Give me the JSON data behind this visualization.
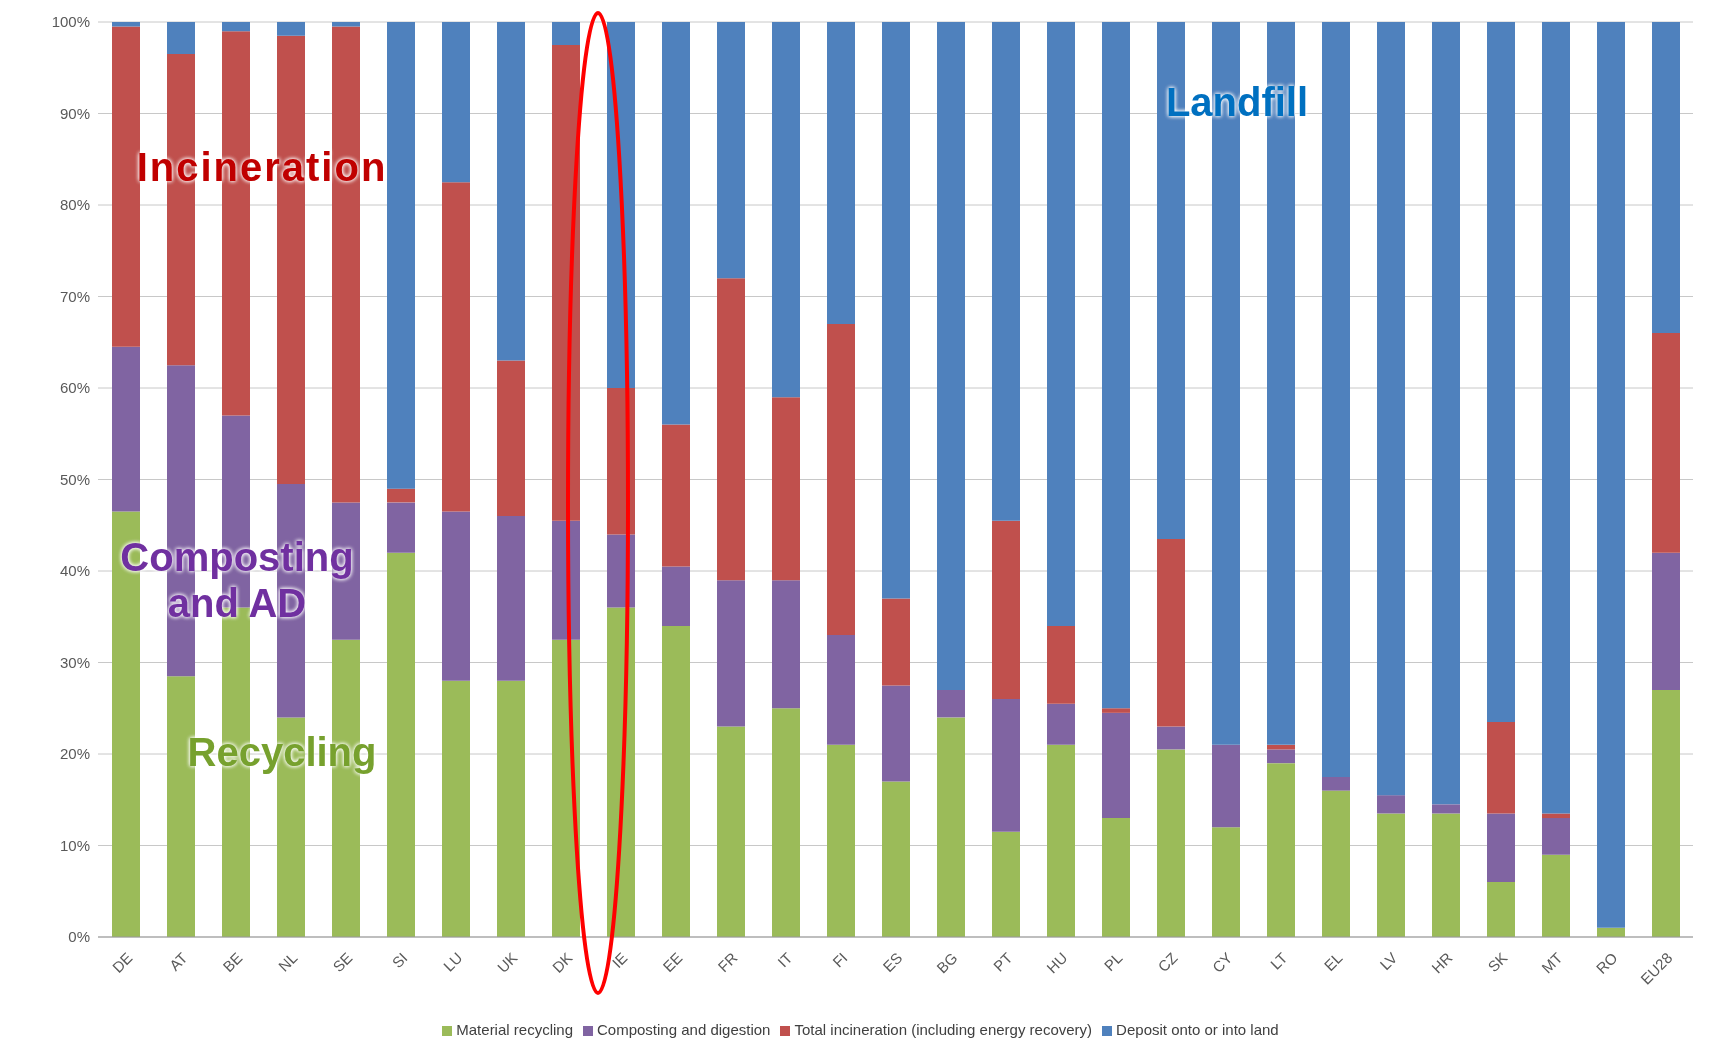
{
  "chart_data": {
    "type": "bar",
    "stacked": true,
    "categories": [
      "DE",
      "AT",
      "BE",
      "NL",
      "SE",
      "SI",
      "LU",
      "UK",
      "DK",
      "IE",
      "EE",
      "FR",
      "IT",
      "FI",
      "ES",
      "BG",
      "PT",
      "HU",
      "PL",
      "CZ",
      "CY",
      "LT",
      "EL",
      "LV",
      "HR",
      "SK",
      "MT",
      "RO",
      "EU28"
    ],
    "series": [
      {
        "name": "Material recycling",
        "color": "#9bbb59",
        "values": [
          46.5,
          28.5,
          36,
          24,
          32.5,
          42,
          28,
          28,
          32.5,
          36,
          34,
          23,
          25,
          21,
          17,
          24,
          11.5,
          21,
          13,
          20.5,
          12,
          19,
          16,
          13.5,
          13.5,
          6,
          9,
          1,
          27
        ]
      },
      {
        "name": "Composting and digestion",
        "color": "#8064a2",
        "values": [
          18,
          34,
          21,
          25.5,
          15,
          5.5,
          18.5,
          18,
          13,
          8,
          6.5,
          16,
          14,
          12,
          10.5,
          3,
          14.5,
          4.5,
          11.5,
          2.5,
          9,
          1.5,
          1.5,
          2,
          1,
          7.5,
          4,
          0,
          15
        ]
      },
      {
        "name": "Total incineration (including energy recovery)",
        "color": "#c0504d",
        "values": [
          35,
          34,
          42,
          49,
          52,
          1.5,
          36,
          17,
          52,
          16,
          15.5,
          33,
          20,
          34,
          9.5,
          0,
          19.5,
          8.5,
          0.5,
          20.5,
          0,
          0.5,
          0,
          0,
          0,
          10,
          0.5,
          0,
          24
        ]
      },
      {
        "name": "Deposit onto or into land",
        "color": "#4f81bd",
        "values": [
          0.5,
          3.5,
          1,
          1.5,
          0.5,
          51,
          17.5,
          37,
          2.5,
          40,
          44,
          28,
          41,
          33,
          63,
          73,
          54.5,
          66,
          75,
          56.5,
          79,
          79,
          82.5,
          84.5,
          85.5,
          76.5,
          86.5,
          99,
          34
        ]
      }
    ],
    "ylim": [
      0,
      100
    ],
    "yticks": [
      {
        "value": 0,
        "label": "0%"
      },
      {
        "value": 10,
        "label": "10%"
      },
      {
        "value": 20,
        "label": "20%"
      },
      {
        "value": 30,
        "label": "30%"
      },
      {
        "value": 40,
        "label": "40%"
      },
      {
        "value": 50,
        "label": "50%"
      },
      {
        "value": 60,
        "label": "60%"
      },
      {
        "value": 70,
        "label": "70%"
      },
      {
        "value": 80,
        "label": "80%"
      },
      {
        "value": 90,
        "label": "90%"
      },
      {
        "value": 100,
        "label": "100%"
      }
    ],
    "grid": "y",
    "legend": "bottom",
    "annotations": [
      "Incineration",
      "Composting and AD",
      "Recycling",
      "Landfill"
    ]
  }
}
